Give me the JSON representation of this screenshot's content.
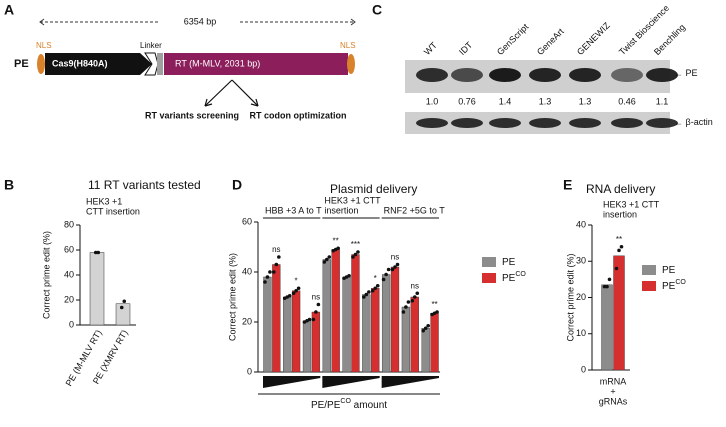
{
  "panel_labels": [
    "A",
    "B",
    "C",
    "D",
    "E"
  ],
  "diagram": {
    "length": "6354 bp",
    "name": "PE",
    "nls_left": "NLS",
    "cas9": "Cas9(H840A)",
    "linker": "Linker",
    "rt": "RT (M-MLV, 2031 bp)",
    "nls_right": "NLS",
    "arrow_left": "RT variants screening",
    "arrow_right": "RT codon optimization"
  },
  "blot": {
    "lanes": [
      "WT",
      "IDT",
      "GenScript",
      "GeneArt",
      "GENEWIZ",
      "Twist Bioscience",
      "Benchling"
    ],
    "quantities": [
      "1.0",
      "0.76",
      "1.4",
      "1.3",
      "1.3",
      "0.46",
      "1.1"
    ],
    "bands": [
      "PE",
      "β-actin"
    ]
  },
  "chart_data": [
    {
      "type": "bar",
      "title": "11 RT variants tested",
      "annotation": [
        "HEK3 +1",
        "CTT insertion"
      ],
      "ylabel": "Correct prime edit (%)",
      "categories": [
        "PE (M-MLV RT)",
        "PE (XMRV RT)"
      ],
      "values": [
        58,
        17
      ],
      "points": [
        [
          58,
          58
        ],
        [
          14,
          19
        ]
      ],
      "color": "#d3d3d3",
      "ylim": [
        0,
        80
      ],
      "yticks": [
        0,
        20,
        40,
        60,
        80
      ]
    },
    {
      "type": "bar",
      "title": "Plasmid delivery",
      "ylabel": "Correct prime edit (%)",
      "xlabel": [
        "PE/PE",
        "CO",
        " amount"
      ],
      "groups": [
        [
          "HBB +3 A to T"
        ],
        [
          "HEK3 +1 CTT",
          "insertion"
        ],
        [
          "RNF2 +5G to T"
        ]
      ],
      "categories": [
        null,
        null,
        null,
        null,
        null,
        null,
        null,
        null,
        null
      ],
      "series": [
        {
          "name": "PE",
          "color": "#8c8c8c",
          "values": [
            38,
            30,
            20.5,
            45,
            38,
            31,
            39,
            26,
            17.5
          ],
          "points": [
            [
              36,
              38,
              40
            ],
            [
              29.5,
              30,
              30.5
            ],
            [
              20,
              20.5,
              21
            ],
            [
              44,
              45,
              46
            ],
            [
              37.5,
              38,
              38.5
            ],
            [
              30,
              31,
              32
            ],
            [
              37,
              39,
              41
            ],
            [
              24,
              26,
              28
            ],
            [
              16.5,
              17.5,
              18.5
            ]
          ]
        },
        {
          "name": "PE",
          "sup": "CO",
          "color": "#d62f2f",
          "values": [
            43,
            32.5,
            24,
            49,
            47,
            33.5,
            42,
            30,
            23.5
          ],
          "points": [
            [
              40,
              43,
              46
            ],
            [
              31.5,
              32.5,
              33.5
            ],
            [
              21,
              24,
              27
            ],
            [
              48.5,
              49,
              49.5
            ],
            [
              46,
              47,
              48
            ],
            [
              32.5,
              33.5,
              34.5
            ],
            [
              41,
              42,
              43
            ],
            [
              28.5,
              30,
              31.5
            ],
            [
              23,
              23.5,
              24
            ]
          ]
        }
      ],
      "significance": [
        "ns",
        "*",
        "ns",
        "**",
        "***",
        "*",
        "ns",
        "ns",
        "**"
      ],
      "ylim": [
        0,
        60
      ],
      "yticks": [
        0,
        20,
        40,
        60
      ],
      "legend": "right"
    },
    {
      "type": "bar",
      "title": "RNA delivery",
      "annotation": [
        "HEK3 +1 CTT",
        "insertion"
      ],
      "ylabel": "Correct prime edit (%)",
      "categories": [
        [
          "mRNA",
          "+",
          "gRNAs"
        ]
      ],
      "series": [
        {
          "name": "PE",
          "color": "#8c8c8c",
          "values": [
            23.5
          ],
          "points": [
            [
              23,
              23,
              25
            ]
          ]
        },
        {
          "name": "PE",
          "sup": "CO",
          "color": "#d62f2f",
          "values": [
            31.5
          ],
          "points": [
            [
              28,
              33,
              34
            ]
          ]
        }
      ],
      "significance": [
        "**"
      ],
      "ylim": [
        0,
        40
      ],
      "yticks": [
        0,
        10,
        20,
        30,
        40
      ],
      "legend": "right"
    }
  ]
}
